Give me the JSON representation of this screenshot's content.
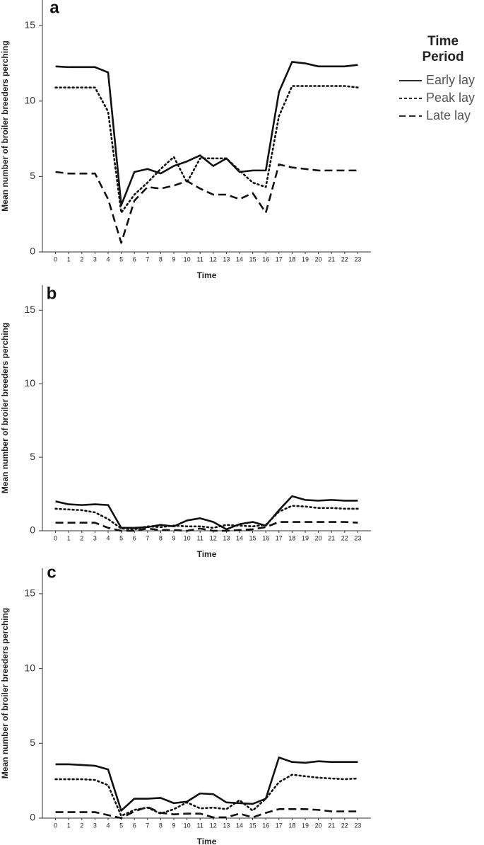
{
  "chart_data": [
    {
      "type": "line",
      "panel_label": "a",
      "ylabel": "Mean number of broiler breeders perching",
      "xlabel": "Time",
      "x": [
        0,
        1,
        2,
        3,
        4,
        5,
        6,
        7,
        8,
        9,
        10,
        11,
        12,
        13,
        14,
        15,
        16,
        17,
        18,
        19,
        20,
        21,
        22,
        23
      ],
      "xlim": [
        -1,
        24
      ],
      "xticks": [
        0,
        1,
        2,
        3,
        4,
        5,
        6,
        7,
        8,
        9,
        10,
        11,
        12,
        13,
        14,
        15,
        16,
        17,
        18,
        19,
        20,
        21,
        22,
        23
      ],
      "ylim": [
        0,
        16.7
      ],
      "yticks": [
        0,
        5,
        10,
        15
      ],
      "grid": false,
      "legend_title": "Time Period",
      "legend": "right",
      "series": [
        {
          "name": "Early lay",
          "color": "#111111",
          "dash": "solid",
          "values": [
            12.3,
            12.25,
            12.25,
            12.25,
            11.9,
            3.1,
            5.3,
            5.5,
            5.2,
            5.7,
            6.0,
            6.4,
            5.7,
            6.2,
            5.3,
            5.4,
            5.4,
            10.6,
            12.6,
            12.5,
            12.3,
            12.3,
            12.3,
            12.4
          ]
        },
        {
          "name": "Peak lay",
          "color": "#111111",
          "dash": "dotted",
          "values": [
            10.9,
            10.9,
            10.9,
            10.9,
            9.3,
            2.6,
            3.8,
            4.6,
            5.5,
            6.3,
            4.6,
            6.2,
            6.2,
            6.2,
            5.4,
            4.6,
            4.3,
            9.0,
            11.0,
            11.0,
            11.0,
            11.0,
            11.0,
            10.9
          ]
        },
        {
          "name": "Late lay",
          "color": "#111111",
          "dash": "dashed",
          "values": [
            5.3,
            5.2,
            5.2,
            5.2,
            3.5,
            0.6,
            3.4,
            4.3,
            4.2,
            4.4,
            4.7,
            4.2,
            3.8,
            3.8,
            3.5,
            3.9,
            2.6,
            5.8,
            5.6,
            5.5,
            5.4,
            5.4,
            5.4,
            5.4
          ]
        }
      ]
    },
    {
      "type": "line",
      "panel_label": "b",
      "ylabel": "Mean number of broiler breeders perching",
      "xlabel": "Time",
      "x": [
        0,
        1,
        2,
        3,
        4,
        5,
        6,
        7,
        8,
        9,
        10,
        11,
        12,
        13,
        14,
        15,
        16,
        17,
        18,
        19,
        20,
        21,
        22,
        23
      ],
      "xlim": [
        -1,
        24
      ],
      "xticks": [
        0,
        1,
        2,
        3,
        4,
        5,
        6,
        7,
        8,
        9,
        10,
        11,
        12,
        13,
        14,
        15,
        16,
        17,
        18,
        19,
        20,
        21,
        22,
        23
      ],
      "ylim": [
        0,
        16.7
      ],
      "yticks": [
        0,
        5,
        10,
        15
      ],
      "grid": false,
      "series": [
        {
          "color": "#111111",
          "dash": "solid",
          "values": [
            2.0,
            1.8,
            1.75,
            1.8,
            1.75,
            0.2,
            0.2,
            0.25,
            0.4,
            0.3,
            0.7,
            0.85,
            0.6,
            0.1,
            0.45,
            0.6,
            0.35,
            1.4,
            2.35,
            2.1,
            2.05,
            2.1,
            2.05,
            2.05
          ]
        },
        {
          "color": "#111111",
          "dash": "dotted",
          "values": [
            1.5,
            1.45,
            1.4,
            1.25,
            0.8,
            0.15,
            0.1,
            0.3,
            0.25,
            0.35,
            0.3,
            0.3,
            0.2,
            0.4,
            0.35,
            0.3,
            0.4,
            1.3,
            1.7,
            1.65,
            1.55,
            1.55,
            1.5,
            1.5
          ]
        },
        {
          "color": "#111111",
          "dash": "dashed",
          "values": [
            0.55,
            0.55,
            0.55,
            0.55,
            0.2,
            0,
            0,
            0.15,
            0.05,
            0.05,
            0,
            0.15,
            0,
            0,
            0.05,
            0.1,
            0.25,
            0.6,
            0.6,
            0.6,
            0.6,
            0.6,
            0.6,
            0.55
          ]
        }
      ]
    },
    {
      "type": "line",
      "panel_label": "c",
      "ylabel": "Mean number of broiler breeders perching",
      "xlabel": "Time",
      "x": [
        0,
        1,
        2,
        3,
        4,
        5,
        6,
        7,
        8,
        9,
        10,
        11,
        12,
        13,
        14,
        15,
        16,
        17,
        18,
        19,
        20,
        21,
        22,
        23
      ],
      "xlim": [
        -1,
        24
      ],
      "xticks": [
        0,
        1,
        2,
        3,
        4,
        5,
        6,
        7,
        8,
        9,
        10,
        11,
        12,
        13,
        14,
        15,
        16,
        17,
        18,
        19,
        20,
        21,
        22,
        23
      ],
      "ylim": [
        0,
        16.7
      ],
      "yticks": [
        0,
        5,
        10,
        15
      ],
      "grid": false,
      "series": [
        {
          "color": "#111111",
          "dash": "solid",
          "values": [
            3.6,
            3.6,
            3.55,
            3.5,
            3.25,
            0.5,
            1.3,
            1.3,
            1.35,
            1.0,
            1.1,
            1.65,
            1.6,
            1.05,
            1.0,
            0.95,
            1.3,
            4.05,
            3.75,
            3.7,
            3.8,
            3.75,
            3.75,
            3.75
          ]
        },
        {
          "color": "#111111",
          "dash": "dotted",
          "values": [
            2.6,
            2.6,
            2.6,
            2.55,
            2.2,
            0.15,
            0.55,
            0.7,
            0.3,
            0.6,
            1.05,
            0.65,
            0.7,
            0.6,
            1.2,
            0.5,
            1.3,
            2.4,
            2.9,
            2.8,
            2.7,
            2.65,
            2.6,
            2.65
          ]
        },
        {
          "color": "#111111",
          "dash": "dashed",
          "values": [
            0.4,
            0.4,
            0.4,
            0.4,
            0.2,
            0,
            0.45,
            0.75,
            0.35,
            0.25,
            0.3,
            0.3,
            0.05,
            0.05,
            0.3,
            0.05,
            0.35,
            0.6,
            0.6,
            0.6,
            0.55,
            0.45,
            0.45,
            0.45
          ]
        }
      ]
    }
  ]
}
